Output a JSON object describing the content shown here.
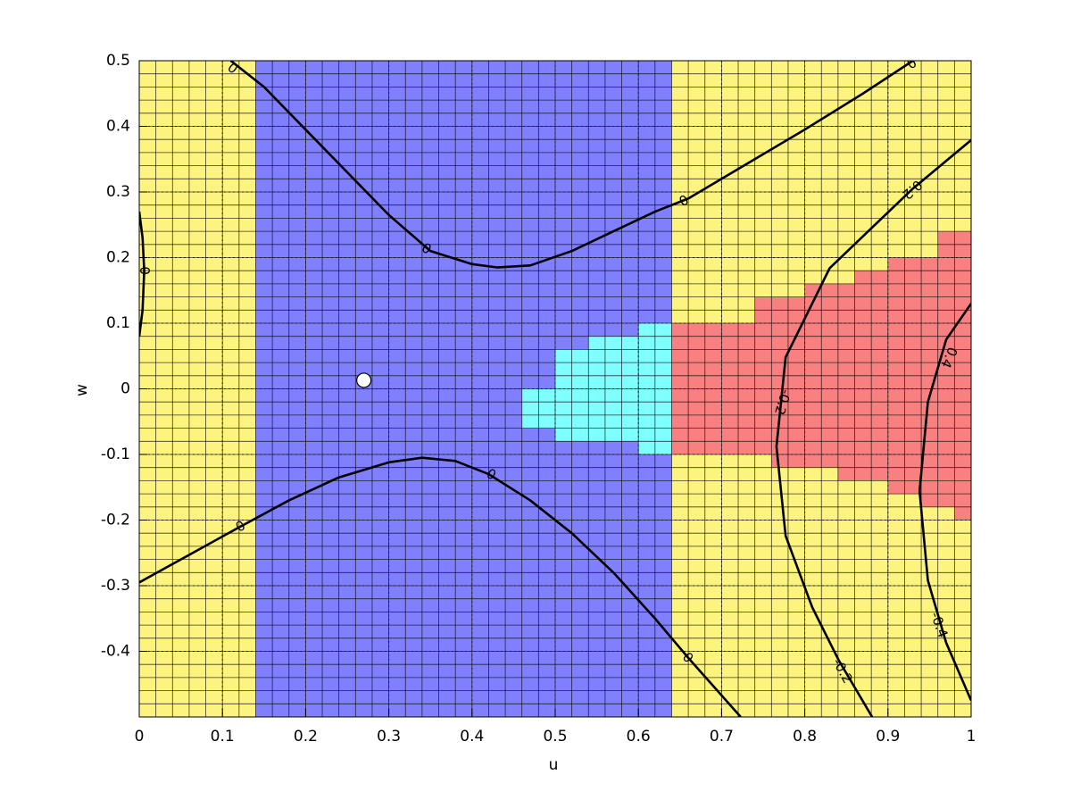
{
  "chart_data": {
    "type": "contour",
    "x_label": "u",
    "y_label": "w",
    "xlim": [
      0,
      1
    ],
    "ylim": [
      -0.5,
      0.5
    ],
    "xticks": [
      0,
      0.1,
      0.2,
      0.3,
      0.4,
      0.5,
      0.6,
      0.7,
      0.8,
      0.9,
      1
    ],
    "yticks": [
      -0.4,
      -0.3,
      -0.2,
      -0.1,
      0,
      0.1,
      0.2,
      0.3,
      0.4,
      0.5
    ],
    "grid": true,
    "cell_step": 0.02,
    "background_color": "#fcf47e",
    "regions": [
      {
        "color": "#8080ff",
        "u": [
          0.14,
          0.64,
          0.64,
          0.14
        ],
        "w": [
          0.5,
          0.5,
          -0.5,
          -0.5
        ]
      },
      {
        "color": "#80ffff",
        "u": [
          0.46,
          0.5,
          0.5,
          0.54,
          0.54,
          0.6,
          0.6,
          0.64,
          0.64,
          0.6,
          0.6,
          0.5,
          0.5,
          0.46
        ],
        "w": [
          0,
          0,
          0.06,
          0.06,
          0.08,
          0.08,
          0.1,
          0.1,
          -0.1,
          -0.1,
          -0.08,
          -0.08,
          -0.06,
          -0.06
        ]
      },
      {
        "color": "#f98080",
        "u": [
          0.64,
          0.74,
          0.74,
          0.8,
          0.8,
          0.86,
          0.86,
          0.9,
          0.9,
          0.96,
          0.96,
          1,
          1,
          0.98,
          0.98,
          0.94,
          0.94,
          0.9,
          0.9,
          0.84,
          0.84,
          0.76,
          0.76,
          0.64
        ],
        "w": [
          0.1,
          0.1,
          0.14,
          0.14,
          0.16,
          0.16,
          0.18,
          0.18,
          0.2,
          0.2,
          0.24,
          0.24,
          -0.2,
          -0.2,
          -0.18,
          -0.18,
          -0.16,
          -0.16,
          -0.14,
          -0.14,
          -0.12,
          -0.12,
          -0.1,
          -0.1
        ]
      }
    ],
    "contours": [
      {
        "u": [
          0.11,
          0.15,
          0.2,
          0.25,
          0.3,
          0.35,
          0.4,
          0.43,
          0.47,
          0.52,
          0.57,
          0.62,
          0.66,
          0.72,
          0.8,
          0.87,
          0.93
        ],
        "w": [
          0.5,
          0.46,
          0.395,
          0.33,
          0.265,
          0.21,
          0.19,
          0.185,
          0.188,
          0.21,
          0.24,
          0.27,
          0.29,
          0.335,
          0.395,
          0.45,
          0.5
        ],
        "labels": [
          {
            "text": "0",
            "u": 0.112,
            "w": 0.488
          },
          {
            "text": "0",
            "u": 0.345,
            "w": 0.213
          },
          {
            "text": "0",
            "u": 0.655,
            "w": 0.286
          },
          {
            "text": "0",
            "u": 0.929,
            "w": 0.495
          }
        ]
      },
      {
        "u": [
          0,
          0.06,
          0.12,
          0.18,
          0.24,
          0.3,
          0.34,
          0.38,
          0.42,
          0.47,
          0.52,
          0.57,
          0.62,
          0.66,
          0.723
        ],
        "w": [
          -0.295,
          -0.253,
          -0.211,
          -0.17,
          -0.135,
          -0.112,
          -0.105,
          -0.11,
          -0.13,
          -0.17,
          -0.22,
          -0.28,
          -0.35,
          -0.41,
          -0.5
        ],
        "labels": [
          {
            "text": "0",
            "u": 0.122,
            "w": -0.21
          },
          {
            "text": "0",
            "u": 0.423,
            "w": -0.131
          },
          {
            "text": "0",
            "u": 0.659,
            "w": -0.41
          }
        ]
      },
      {
        "u": [
          0,
          0.004,
          0.006,
          0.004,
          0
        ],
        "w": [
          0.27,
          0.23,
          0.18,
          0.12,
          0.08
        ],
        "labels": [
          {
            "text": "0",
            "u": 0.006,
            "w": 0.18
          }
        ]
      },
      {
        "u": [
          1,
          0.929,
          0.83,
          0.777,
          0.766,
          0.777,
          0.809,
          0.841,
          0.881
        ],
        "w": [
          0.379,
          0.304,
          0.184,
          0.048,
          -0.088,
          -0.224,
          -0.333,
          -0.414,
          -0.5
        ],
        "labels": [
          {
            "text": "0.2",
            "u": 0.929,
            "w": 0.304
          },
          {
            "text": "-0.2",
            "u": 0.773,
            "w": -0.02
          },
          {
            "text": "-0.2",
            "u": 0.845,
            "w": -0.43
          }
        ]
      },
      {
        "u": [
          1,
          0.97,
          0.948,
          0.938,
          0.948,
          0.97,
          1
        ],
        "w": [
          0.13,
          0.075,
          -0.02,
          -0.156,
          -0.292,
          -0.387,
          -0.475
        ],
        "labels": [
          {
            "text": "0.4",
            "u": 0.973,
            "w": 0.048
          },
          {
            "text": "-0.4",
            "u": 0.961,
            "w": -0.36
          }
        ]
      }
    ],
    "marker": {
      "u": 0.27,
      "w": 0.013,
      "color": "#ffffff"
    }
  }
}
